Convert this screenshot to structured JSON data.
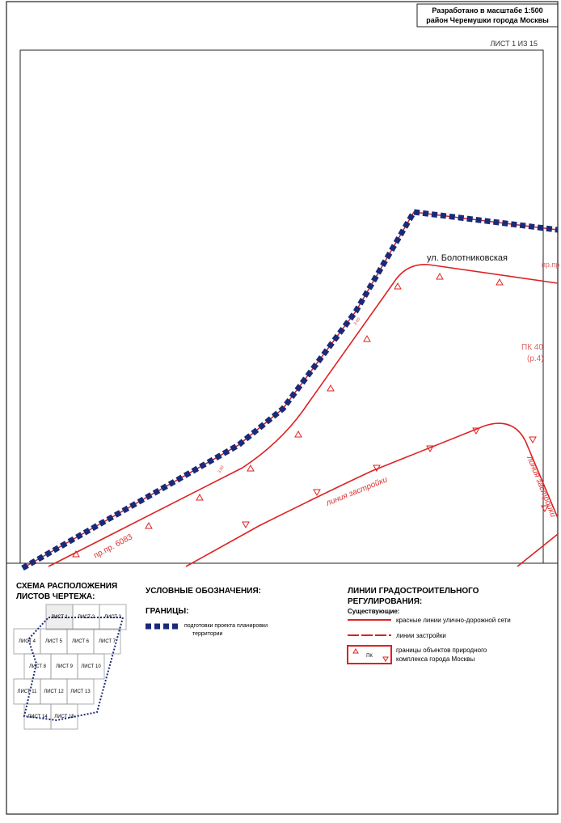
{
  "header": {
    "scale": "Разработано в масштабе 1:500",
    "district": "район Черемушки города Москвы"
  },
  "sheet_number": "ЛИСТ 1 ИЗ 15",
  "map_labels": {
    "street": "ул. Болотниковская",
    "passage": "пр.пр. 6083",
    "picket": "ПК 40",
    "picket_note": "(р.4)",
    "building_line_1": "линия застройки",
    "building_line_2": "линия застройки",
    "dimension_1": "3.00",
    "dimension_2": "3.00",
    "passage_right": "пр.пр"
  },
  "scheme": {
    "title_line1": "СХЕМА РАСПОЛОЖЕНИЯ",
    "title_line2": "ЛИСТОВ ЧЕРТЕЖА:",
    "sheets": [
      "ЛИСТ 1",
      "ЛИСТ 2",
      "ЛИСТ 3",
      "ЛИСТ 4",
      "ЛИСТ 5",
      "ЛИСТ 6",
      "ЛИСТ 7",
      "ЛИСТ 8",
      "ЛИСТ 9",
      "ЛИСТ 10",
      "ЛИСТ 11",
      "ЛИСТ 12",
      "ЛИСТ 13",
      "ЛИСТ 14",
      "ЛИСТ 15"
    ]
  },
  "legend": {
    "title": "УСЛОВНЫЕ ОБОЗНАЧЕНИЯ:",
    "boundaries": "ГРАНИЦЫ:",
    "boundary_line1": "подготовки проекта планировки",
    "boundary_line2": "территории"
  },
  "regulation": {
    "title_line1": "ЛИНИИ ГРАДОСТРОИТЕЛЬНОГО",
    "title_line2": "РЕГУЛИРОВАНИЯ:",
    "existing": "Существующие:",
    "red_lines": "красные линии улично-дорожной сети",
    "building_lines": "линии застройки",
    "nature_code": "ПК",
    "nature_line1": "границы объектов природного",
    "nature_line2": "комплекса города Москвы"
  }
}
